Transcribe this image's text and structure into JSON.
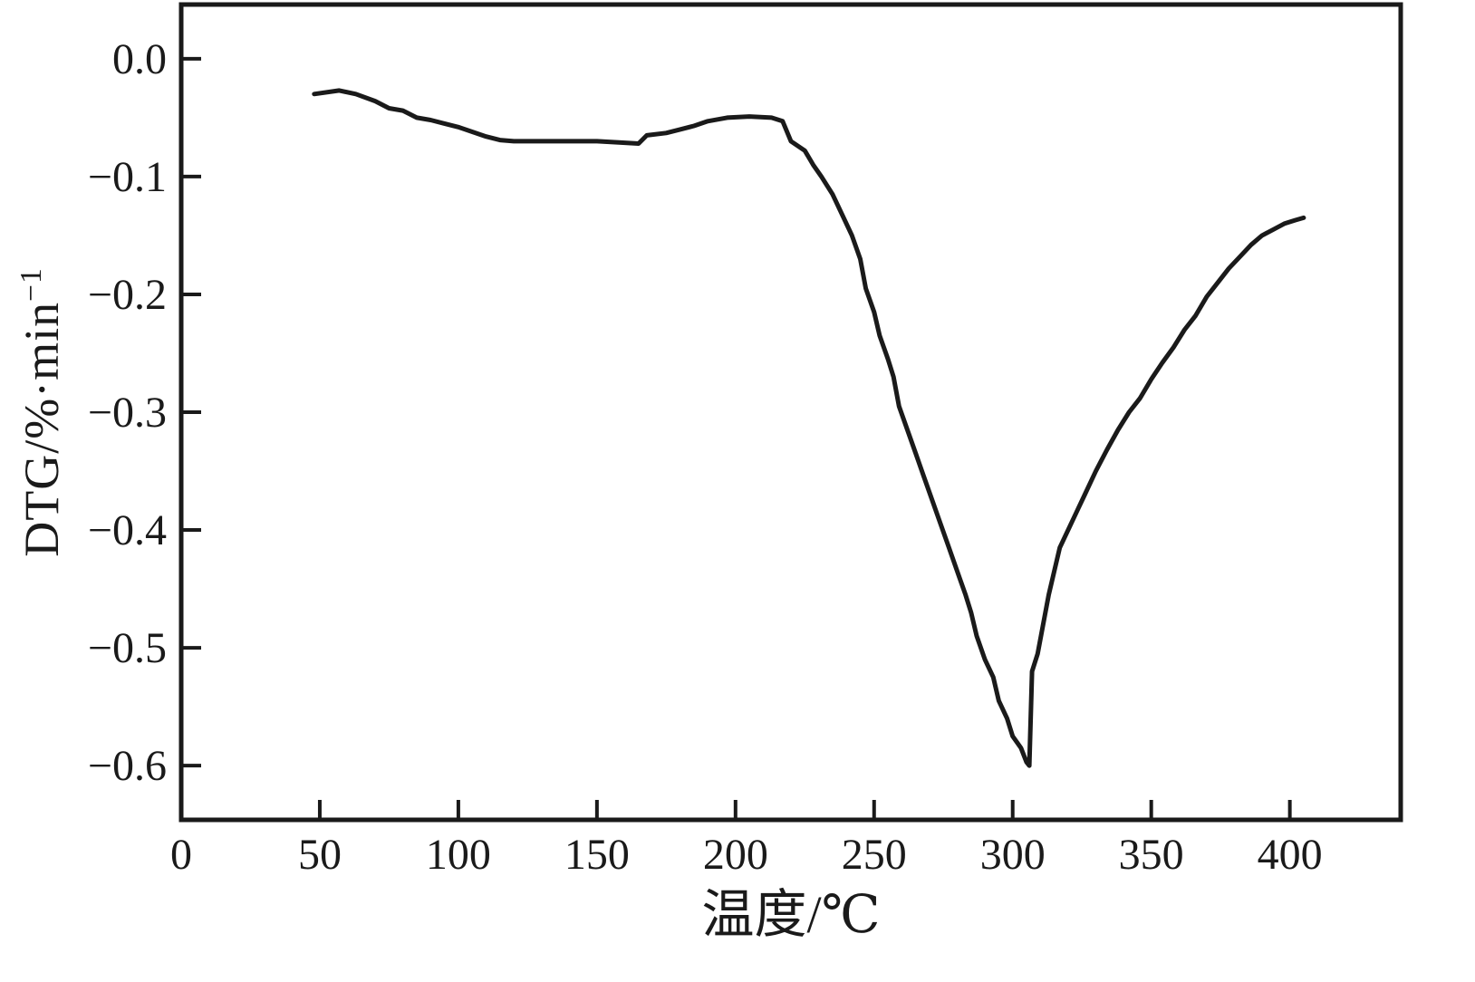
{
  "figure": {
    "background": "#ffffff",
    "frame_color": "#1a1a1a"
  },
  "chart_data": {
    "type": "line",
    "title": "",
    "xlabel": "温度/℃",
    "ylabel": "DTG/%·min⁻¹",
    "ylabel_base": "DTG/%·min",
    "ylabel_sup": "−1",
    "xlim": [
      0,
      440
    ],
    "ylim": [
      -0.646,
      0.046
    ],
    "grid": false,
    "legend": null,
    "x_ticks": {
      "values": [
        0,
        50,
        100,
        150,
        200,
        250,
        300,
        350,
        400
      ],
      "labels": [
        "0",
        "50",
        "100",
        "150",
        "200",
        "250",
        "300",
        "350",
        "400"
      ]
    },
    "y_ticks": {
      "values": [
        0.0,
        -0.1,
        -0.2,
        -0.3,
        -0.4,
        -0.5,
        -0.6
      ],
      "labels": [
        "0.0",
        "−0.1",
        "−0.2",
        "−0.3",
        "−0.4",
        "−0.5",
        "−0.6"
      ]
    },
    "line_color": "#1a1a1a",
    "series": [
      {
        "name": "DTG",
        "points": [
          [
            48,
            -0.03
          ],
          [
            57,
            -0.027
          ],
          [
            63,
            -0.03
          ],
          [
            70,
            -0.036
          ],
          [
            75,
            -0.042
          ],
          [
            80,
            -0.044
          ],
          [
            85,
            -0.05
          ],
          [
            90,
            -0.052
          ],
          [
            95,
            -0.055
          ],
          [
            100,
            -0.058
          ],
          [
            105,
            -0.062
          ],
          [
            110,
            -0.066
          ],
          [
            115,
            -0.069
          ],
          [
            120,
            -0.07
          ],
          [
            130,
            -0.07
          ],
          [
            140,
            -0.07
          ],
          [
            150,
            -0.07
          ],
          [
            158,
            -0.071
          ],
          [
            165,
            -0.072
          ],
          [
            168,
            -0.065
          ],
          [
            175,
            -0.063
          ],
          [
            180,
            -0.06
          ],
          [
            185,
            -0.057
          ],
          [
            190,
            -0.053
          ],
          [
            197,
            -0.05
          ],
          [
            205,
            -0.049
          ],
          [
            213,
            -0.05
          ],
          [
            217,
            -0.053
          ],
          [
            220,
            -0.07
          ],
          [
            225,
            -0.078
          ],
          [
            228,
            -0.09
          ],
          [
            231,
            -0.1
          ],
          [
            235,
            -0.115
          ],
          [
            238,
            -0.13
          ],
          [
            242,
            -0.15
          ],
          [
            245,
            -0.17
          ],
          [
            247,
            -0.195
          ],
          [
            250,
            -0.215
          ],
          [
            252,
            -0.235
          ],
          [
            255,
            -0.255
          ],
          [
            257,
            -0.27
          ],
          [
            259,
            -0.295
          ],
          [
            262,
            -0.315
          ],
          [
            265,
            -0.335
          ],
          [
            268,
            -0.355
          ],
          [
            271,
            -0.375
          ],
          [
            274,
            -0.395
          ],
          [
            277,
            -0.415
          ],
          [
            280,
            -0.435
          ],
          [
            283,
            -0.455
          ],
          [
            285,
            -0.47
          ],
          [
            287,
            -0.49
          ],
          [
            290,
            -0.51
          ],
          [
            293,
            -0.525
          ],
          [
            295,
            -0.545
          ],
          [
            298,
            -0.56
          ],
          [
            300,
            -0.575
          ],
          [
            303,
            -0.585
          ],
          [
            305,
            -0.597
          ],
          [
            306,
            -0.6
          ],
          [
            307,
            -0.52
          ],
          [
            309,
            -0.505
          ],
          [
            311,
            -0.48
          ],
          [
            313,
            -0.455
          ],
          [
            315,
            -0.435
          ],
          [
            317,
            -0.415
          ],
          [
            320,
            -0.4
          ],
          [
            323,
            -0.385
          ],
          [
            326,
            -0.37
          ],
          [
            330,
            -0.35
          ],
          [
            334,
            -0.332
          ],
          [
            338,
            -0.315
          ],
          [
            342,
            -0.3
          ],
          [
            346,
            -0.288
          ],
          [
            350,
            -0.272
          ],
          [
            354,
            -0.258
          ],
          [
            358,
            -0.245
          ],
          [
            362,
            -0.23
          ],
          [
            366,
            -0.218
          ],
          [
            370,
            -0.202
          ],
          [
            374,
            -0.19
          ],
          [
            378,
            -0.178
          ],
          [
            382,
            -0.168
          ],
          [
            386,
            -0.158
          ],
          [
            390,
            -0.15
          ],
          [
            394,
            -0.145
          ],
          [
            398,
            -0.14
          ],
          [
            402,
            -0.137
          ],
          [
            405,
            -0.135
          ]
        ]
      }
    ]
  }
}
